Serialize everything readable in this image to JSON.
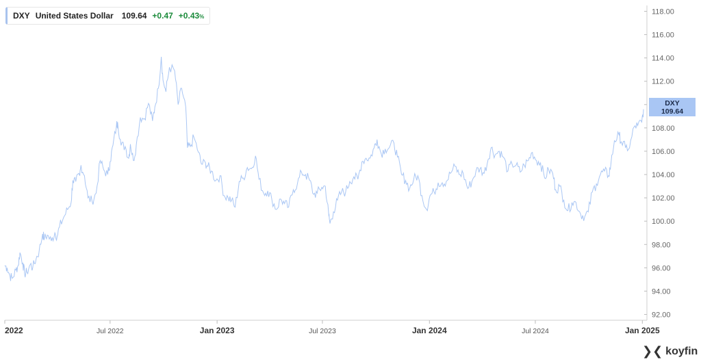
{
  "legend": {
    "symbol": "DXY",
    "name": "United States Dollar",
    "last": "109.64",
    "change": "+0.47",
    "change_pct": "+0.43",
    "pct_sign": "%"
  },
  "price_tag": {
    "symbol": "DXY",
    "value": "109.64"
  },
  "branding": {
    "logo_text": "koyfin"
  },
  "colors": {
    "line": "#a9c6f4",
    "up": "#1a8a3a",
    "axis": "#999999"
  },
  "chart_data": {
    "type": "line",
    "title": "",
    "xlabel": "",
    "ylabel": "",
    "ylim": [
      91.5,
      118.5
    ],
    "y_ticks": [
      "92.00",
      "94.00",
      "96.00",
      "98.00",
      "100.00",
      "102.00",
      "104.00",
      "106.00",
      "108.00",
      "110.00",
      "112.00",
      "114.00",
      "116.00",
      "118.00"
    ],
    "x_ticks": [
      {
        "label": "2022",
        "date": "2022-01-01"
      },
      {
        "label": "Jul 2022",
        "date": "2022-07-01"
      },
      {
        "label": "Jan 2023",
        "date": "2023-01-01"
      },
      {
        "label": "Jul 2023",
        "date": "2023-07-01"
      },
      {
        "label": "Jan 2024",
        "date": "2024-01-01"
      },
      {
        "label": "Jul 2024",
        "date": "2024-07-01"
      },
      {
        "label": "Jan 2025",
        "date": "2025-01-01"
      }
    ],
    "x_range": [
      "2022-01-01",
      "2025-01-03"
    ],
    "grid": false,
    "series": [
      {
        "name": "DXY",
        "points": [
          [
            "2022-01-01",
            96.2
          ],
          [
            "2022-01-05",
            96.0
          ],
          [
            "2022-01-10",
            95.3
          ],
          [
            "2022-01-14",
            95.1
          ],
          [
            "2022-01-20",
            95.8
          ],
          [
            "2022-01-24",
            96.2
          ],
          [
            "2022-01-27",
            97.3
          ],
          [
            "2022-02-01",
            96.4
          ],
          [
            "2022-02-04",
            95.5
          ],
          [
            "2022-02-08",
            95.6
          ],
          [
            "2022-02-14",
            96.3
          ],
          [
            "2022-02-18",
            96.0
          ],
          [
            "2022-02-24",
            96.8
          ],
          [
            "2022-03-01",
            97.4
          ],
          [
            "2022-03-07",
            98.9
          ],
          [
            "2022-03-10",
            98.5
          ],
          [
            "2022-03-15",
            98.8
          ],
          [
            "2022-03-22",
            98.3
          ],
          [
            "2022-03-28",
            99.0
          ],
          [
            "2022-04-01",
            98.7
          ],
          [
            "2022-04-05",
            99.5
          ],
          [
            "2022-04-12",
            100.3
          ],
          [
            "2022-04-19",
            101.0
          ],
          [
            "2022-04-25",
            101.6
          ],
          [
            "2022-04-28",
            103.5
          ],
          [
            "2022-05-03",
            103.4
          ],
          [
            "2022-05-10",
            103.9
          ],
          [
            "2022-05-12",
            104.8
          ],
          [
            "2022-05-18",
            103.9
          ],
          [
            "2022-05-24",
            102.0
          ],
          [
            "2022-05-31",
            101.7
          ],
          [
            "2022-06-07",
            102.4
          ],
          [
            "2022-06-14",
            105.2
          ],
          [
            "2022-06-20",
            104.4
          ],
          [
            "2022-06-27",
            104.0
          ],
          [
            "2022-07-01",
            105.1
          ],
          [
            "2022-07-06",
            106.5
          ],
          [
            "2022-07-12",
            108.2
          ],
          [
            "2022-07-14",
            108.5
          ],
          [
            "2022-07-20",
            106.5
          ],
          [
            "2022-07-27",
            106.4
          ],
          [
            "2022-08-02",
            105.4
          ],
          [
            "2022-08-05",
            106.6
          ],
          [
            "2022-08-10",
            105.2
          ],
          [
            "2022-08-15",
            106.5
          ],
          [
            "2022-08-22",
            108.9
          ],
          [
            "2022-08-29",
            108.8
          ],
          [
            "2022-09-05",
            110.1
          ],
          [
            "2022-09-12",
            108.6
          ],
          [
            "2022-09-16",
            109.8
          ],
          [
            "2022-09-22",
            111.4
          ],
          [
            "2022-09-27",
            114.1
          ],
          [
            "2022-09-30",
            112.1
          ],
          [
            "2022-10-05",
            111.1
          ],
          [
            "2022-10-11",
            113.2
          ],
          [
            "2022-10-20",
            112.9
          ],
          [
            "2022-10-26",
            110.0
          ],
          [
            "2022-11-01",
            111.4
          ],
          [
            "2022-11-08",
            109.8
          ],
          [
            "2022-11-11",
            106.3
          ],
          [
            "2022-11-16",
            106.4
          ],
          [
            "2022-11-22",
            107.2
          ],
          [
            "2022-11-30",
            105.9
          ],
          [
            "2022-12-05",
            104.9
          ],
          [
            "2022-12-12",
            105.0
          ],
          [
            "2022-12-16",
            104.7
          ],
          [
            "2022-12-22",
            104.3
          ],
          [
            "2022-12-30",
            103.5
          ],
          [
            "2023-01-06",
            103.9
          ],
          [
            "2023-01-13",
            102.2
          ],
          [
            "2023-01-20",
            102.0
          ],
          [
            "2023-01-26",
            101.8
          ],
          [
            "2023-02-01",
            101.2
          ],
          [
            "2023-02-08",
            103.4
          ],
          [
            "2023-02-15",
            103.7
          ],
          [
            "2023-02-22",
            104.6
          ],
          [
            "2023-03-01",
            104.5
          ],
          [
            "2023-03-08",
            105.6
          ],
          [
            "2023-03-14",
            103.6
          ],
          [
            "2023-03-22",
            102.4
          ],
          [
            "2023-03-29",
            102.6
          ],
          [
            "2023-04-05",
            101.9
          ],
          [
            "2023-04-13",
            101.0
          ],
          [
            "2023-04-20",
            101.9
          ],
          [
            "2023-04-27",
            101.5
          ],
          [
            "2023-05-04",
            101.2
          ],
          [
            "2023-05-12",
            102.7
          ],
          [
            "2023-05-19",
            103.2
          ],
          [
            "2023-05-26",
            104.2
          ],
          [
            "2023-06-02",
            104.0
          ],
          [
            "2023-06-09",
            103.5
          ],
          [
            "2023-06-16",
            102.3
          ],
          [
            "2023-06-22",
            102.4
          ],
          [
            "2023-06-30",
            102.9
          ],
          [
            "2023-07-06",
            103.0
          ],
          [
            "2023-07-12",
            100.5
          ],
          [
            "2023-07-14",
            99.8
          ],
          [
            "2023-07-20",
            100.8
          ],
          [
            "2023-07-27",
            101.8
          ],
          [
            "2023-08-03",
            102.5
          ],
          [
            "2023-08-10",
            102.5
          ],
          [
            "2023-08-17",
            103.4
          ],
          [
            "2023-08-24",
            103.8
          ],
          [
            "2023-08-31",
            103.6
          ],
          [
            "2023-09-07",
            105.1
          ],
          [
            "2023-09-14",
            105.4
          ],
          [
            "2023-09-21",
            105.4
          ],
          [
            "2023-09-28",
            106.3
          ],
          [
            "2023-10-03",
            107.0
          ],
          [
            "2023-10-10",
            105.8
          ],
          [
            "2023-10-17",
            106.2
          ],
          [
            "2023-10-24",
            106.3
          ],
          [
            "2023-11-01",
            106.7
          ],
          [
            "2023-11-07",
            105.5
          ],
          [
            "2023-11-14",
            104.0
          ],
          [
            "2023-11-21",
            103.5
          ],
          [
            "2023-11-28",
            102.8
          ],
          [
            "2023-12-05",
            103.6
          ],
          [
            "2023-12-12",
            103.9
          ],
          [
            "2023-12-19",
            102.2
          ],
          [
            "2023-12-27",
            101.0
          ],
          [
            "2024-01-02",
            102.2
          ],
          [
            "2024-01-09",
            102.5
          ],
          [
            "2024-01-16",
            103.3
          ],
          [
            "2024-01-23",
            103.3
          ],
          [
            "2024-01-30",
            103.4
          ],
          [
            "2024-02-06",
            104.1
          ],
          [
            "2024-02-14",
            104.7
          ],
          [
            "2024-02-21",
            104.0
          ],
          [
            "2024-02-28",
            104.1
          ],
          [
            "2024-03-07",
            102.8
          ],
          [
            "2024-03-14",
            103.4
          ],
          [
            "2024-03-21",
            104.3
          ],
          [
            "2024-03-28",
            104.5
          ],
          [
            "2024-04-04",
            104.1
          ],
          [
            "2024-04-11",
            105.3
          ],
          [
            "2024-04-16",
            106.3
          ],
          [
            "2024-04-23",
            105.7
          ],
          [
            "2024-04-30",
            106.0
          ],
          [
            "2024-05-07",
            105.5
          ],
          [
            "2024-05-15",
            104.3
          ],
          [
            "2024-05-22",
            104.9
          ],
          [
            "2024-05-29",
            104.8
          ],
          [
            "2024-06-05",
            104.2
          ],
          [
            "2024-06-12",
            104.8
          ],
          [
            "2024-06-19",
            105.2
          ],
          [
            "2024-06-26",
            105.9
          ],
          [
            "2024-07-03",
            105.2
          ],
          [
            "2024-07-10",
            105.0
          ],
          [
            "2024-07-17",
            103.7
          ],
          [
            "2024-07-24",
            104.4
          ],
          [
            "2024-07-31",
            104.1
          ],
          [
            "2024-08-05",
            102.7
          ],
          [
            "2024-08-12",
            103.0
          ],
          [
            "2024-08-19",
            101.8
          ],
          [
            "2024-08-26",
            100.9
          ],
          [
            "2024-09-02",
            101.6
          ],
          [
            "2024-09-09",
            101.6
          ],
          [
            "2024-09-17",
            100.6
          ],
          [
            "2024-09-24",
            100.4
          ],
          [
            "2024-09-30",
            100.8
          ],
          [
            "2024-10-07",
            102.5
          ],
          [
            "2024-10-14",
            103.2
          ],
          [
            "2024-10-21",
            104.0
          ],
          [
            "2024-10-28",
            104.3
          ],
          [
            "2024-11-04",
            103.9
          ],
          [
            "2024-11-08",
            104.9
          ],
          [
            "2024-11-14",
            106.9
          ],
          [
            "2024-11-22",
            107.4
          ],
          [
            "2024-11-26",
            106.8
          ],
          [
            "2024-12-03",
            106.3
          ],
          [
            "2024-12-10",
            106.3
          ],
          [
            "2024-12-18",
            108.1
          ],
          [
            "2024-12-24",
            108.2
          ],
          [
            "2024-12-31",
            108.5
          ],
          [
            "2025-01-03",
            109.6
          ]
        ]
      }
    ]
  }
}
